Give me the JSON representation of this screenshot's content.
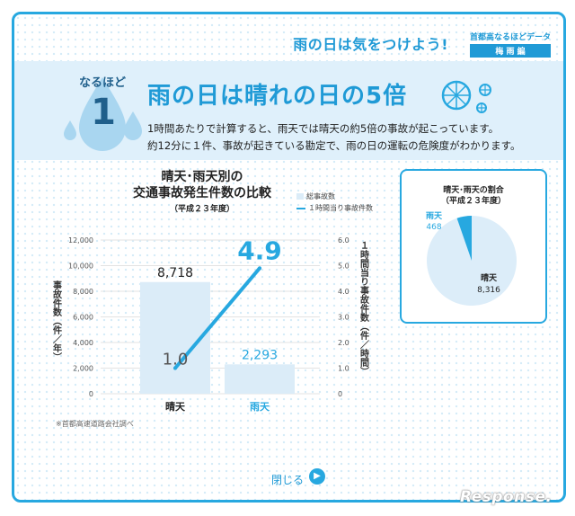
{
  "header": {
    "title": "雨の日は気をつけよう!",
    "series_name": "首都高なるほどデータ",
    "series_badge": "梅 雨 編"
  },
  "banner": {
    "badge_text": "なるほど",
    "badge_number": "1",
    "headline": "雨の日は晴れの日の5倍",
    "line1": "1時間あたりで計算すると、雨天では晴天の約5倍の事故が起こっています。",
    "line2": "約12分に１件、事故が起きている勘定で、雨の日の運転の危険度がわかります。"
  },
  "main_chart": {
    "title_line1": "晴天･雨天別の",
    "title_line2": "交通事故発生件数の比較",
    "subtitle": "（平成２３年度）",
    "legend_bar": "総事故数",
    "legend_line": "１時間当り事故件数",
    "source_note": "※首都高速道路会社調べ"
  },
  "pie_chart": {
    "title_line1": "晴天･雨天の割合",
    "title_line2": "（平成２３年度）"
  },
  "footer": {
    "close_label": "閉じる",
    "watermark": "Response."
  },
  "colors": {
    "accent": "#27a8e0",
    "bar": "#dbecf8",
    "banner": "#dff0fb",
    "dark_text": "#1f5f8b"
  },
  "chart_data": [
    {
      "type": "bar",
      "categories": [
        "晴天",
        "雨天"
      ],
      "series": [
        {
          "name": "総事故数",
          "values": [
            8718,
            2293
          ],
          "value_labels": [
            "8,718",
            "2,293"
          ]
        },
        {
          "name": "１時間当り事故件数",
          "type": "line",
          "values": [
            1.0,
            4.9
          ],
          "value_labels": [
            "1.0",
            "4.9"
          ]
        }
      ],
      "ylabel": "事故件数（件／年）",
      "y2label": "１時間当り事故件数（件／時間）",
      "ylim": [
        0,
        12000
      ],
      "y2lim": [
        0,
        6
      ],
      "yticks": [
        "0",
        "2,000",
        "4,000",
        "6,000",
        "8,000",
        "10,000",
        "12,000"
      ],
      "y2ticks": [
        "0",
        "1.0",
        "2.0",
        "3.0",
        "4.0",
        "5.0",
        "6.0"
      ]
    },
    {
      "type": "pie",
      "labels": [
        "晴天",
        "雨天"
      ],
      "values": [
        8316,
        468
      ],
      "value_labels": [
        "8,316",
        "468"
      ]
    }
  ]
}
